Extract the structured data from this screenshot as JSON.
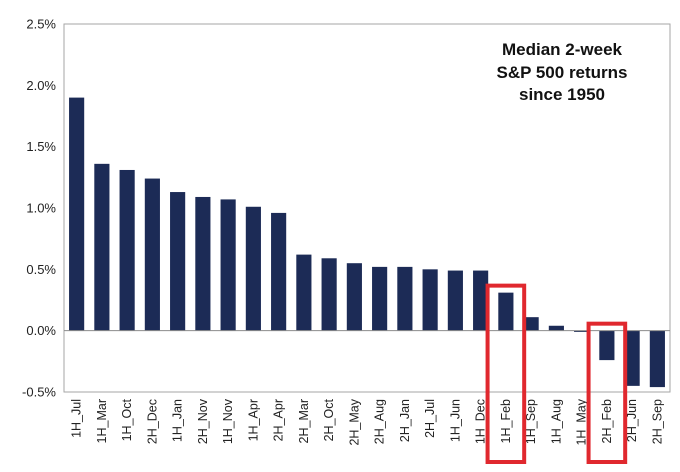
{
  "chart_data": {
    "type": "bar",
    "title_lines": [
      "Median 2-week",
      "S&P 500 returns",
      "since 1950"
    ],
    "xlabel": "",
    "ylabel": "",
    "ylim": [
      -0.5,
      2.5
    ],
    "yticks": [
      2.5,
      2.0,
      1.5,
      1.0,
      0.5,
      0.0,
      -0.5
    ],
    "ytick_labels": [
      "2.5%",
      "2.0%",
      "1.5%",
      "1.0%",
      "0.5%",
      "0.0%",
      "-0.5%"
    ],
    "y_unit": "%",
    "categories": [
      "1H_Jul",
      "1H_Mar",
      "1H_Oct",
      "2H_Dec",
      "1H_Jan",
      "2H_Nov",
      "1H_Nov",
      "1H_Apr",
      "2H_Apr",
      "2H_Mar",
      "2H_Oct",
      "2H_May",
      "2H_Aug",
      "2H_Jan",
      "2H_Jul",
      "1H_Jun",
      "1H_Dec",
      "1H_Feb",
      "1H_Sep",
      "1H_Aug",
      "1H_May",
      "2H_Feb",
      "2H_Jun",
      "2H_Sep"
    ],
    "values": [
      1.9,
      1.36,
      1.31,
      1.24,
      1.13,
      1.09,
      1.07,
      1.01,
      0.96,
      0.62,
      0.59,
      0.55,
      0.52,
      0.52,
      0.5,
      0.49,
      0.49,
      0.31,
      0.11,
      0.04,
      -0.01,
      -0.24,
      -0.45,
      -0.46
    ],
    "highlighted_categories": [
      "1H_Feb",
      "2H_Feb"
    ],
    "grid": false,
    "legend": "none",
    "colors": {
      "bar": "#1c2b56",
      "highlight_box": "#e0282e",
      "axis": "#8c8c8c",
      "plot_border": "#a6a6a6",
      "text": "#222222"
    }
  }
}
